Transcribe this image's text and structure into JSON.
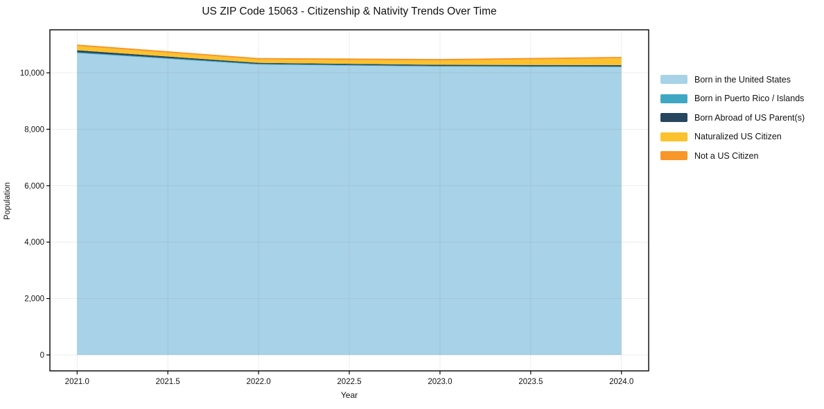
{
  "title": "US ZIP Code 15063 - Citizenship & Nativity Trends Over Time",
  "chart_data": {
    "type": "area",
    "stacked": true,
    "title": "US ZIP Code 15063 - Citizenship & Nativity Trends Over Time",
    "xlabel": "Year",
    "ylabel": "Population",
    "x": [
      2021,
      2022,
      2023,
      2024
    ],
    "series": [
      {
        "name": "Born in the United States",
        "color": "#a7d2e8",
        "values": [
          10700,
          10290,
          10220,
          10200
        ]
      },
      {
        "name": "Born in Puerto Rico / Islands",
        "color": "#3ea8c4",
        "values": [
          30,
          25,
          25,
          25
        ]
      },
      {
        "name": "Born Abroad of US Parent(s)",
        "color": "#25465e",
        "values": [
          70,
          40,
          40,
          50
        ]
      },
      {
        "name": "Naturalized US Citizen",
        "color": "#fcc22d",
        "values": [
          150,
          120,
          150,
          240
        ]
      },
      {
        "name": "Not a US Citizen",
        "color": "#f89628",
        "values": [
          55,
          50,
          55,
          50
        ]
      }
    ],
    "totals_by_year": [
      11005,
      10525,
      10490,
      10565
    ],
    "xticks": [
      2021.0,
      2021.5,
      2022.0,
      2022.5,
      2023.0,
      2023.5,
      2024.0
    ],
    "xtick_labels": [
      "2021.0",
      "2021.5",
      "2022.0",
      "2022.5",
      "2023.0",
      "2023.5",
      "2024.0"
    ],
    "yticks": [
      0,
      2000,
      4000,
      6000,
      8000,
      10000
    ],
    "ytick_labels": [
      "0",
      "2,000",
      "4,000",
      "6,000",
      "8,000",
      "10,000"
    ],
    "xlim": [
      2020.85,
      2024.15
    ],
    "ylim": [
      -565,
      11525
    ],
    "grid": true,
    "legend_position": "right-outside",
    "axis_color": "#000000",
    "grid_color": "#808080",
    "text_color": "#111111"
  }
}
